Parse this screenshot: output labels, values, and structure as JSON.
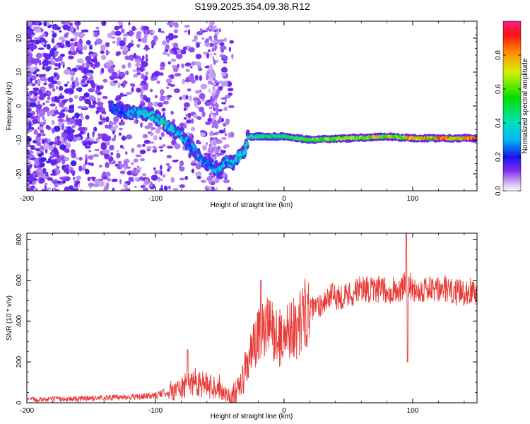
{
  "title": "S199.2025.354.09.38.R12",
  "colors": {
    "snr_line": "#e83a36",
    "axis": "#000000",
    "frame": "#000000"
  },
  "chart_data": [
    {
      "type": "heatmap",
      "name": "spectrogram",
      "xlabel": "Height of straight line (km)",
      "ylabel": "Frequency (Hz)",
      "xlim": [
        -200,
        150
      ],
      "ylim": [
        -25,
        25
      ],
      "xticks": [
        -200,
        -100,
        0,
        100
      ],
      "yticks": [
        -20,
        -10,
        0,
        10,
        20
      ],
      "colorbar": {
        "label": "Normalized spectral amplitude",
        "range": [
          0,
          1
        ],
        "ticks": [
          "0.0",
          "0.2",
          "0.4",
          "0.6",
          "0.8"
        ],
        "tick_values": [
          0.0,
          0.2,
          0.4,
          0.6,
          0.8
        ]
      },
      "ridge": [
        {
          "x": -130,
          "y": -1,
          "amp": 0.25
        },
        {
          "x": -120,
          "y": -2,
          "amp": 0.35
        },
        {
          "x": -110,
          "y": -2,
          "amp": 0.4
        },
        {
          "x": -100,
          "y": -3,
          "amp": 0.45
        },
        {
          "x": -90,
          "y": -6,
          "amp": 0.45
        },
        {
          "x": -80,
          "y": -9,
          "amp": 0.35
        },
        {
          "x": -70,
          "y": -13,
          "amp": 0.35
        },
        {
          "x": -60,
          "y": -17,
          "amp": 0.3
        },
        {
          "x": -50,
          "y": -19,
          "amp": 0.4
        },
        {
          "x": -45,
          "y": -16,
          "amp": 0.35
        },
        {
          "x": -40,
          "y": -17,
          "amp": 0.4
        },
        {
          "x": -35,
          "y": -15,
          "amp": 0.4
        },
        {
          "x": -30,
          "y": -13,
          "amp": 0.4
        },
        {
          "x": -28,
          "y": -9,
          "amp": 0.5
        },
        {
          "x": -10,
          "y": -9,
          "amp": 0.55
        },
        {
          "x": 0,
          "y": -9,
          "amp": 0.55
        },
        {
          "x": 20,
          "y": -10,
          "amp": 0.65
        },
        {
          "x": 50,
          "y": -9.5,
          "amp": 0.75
        },
        {
          "x": 80,
          "y": -9,
          "amp": 0.8
        },
        {
          "x": 100,
          "y": -9.5,
          "amp": 0.85
        },
        {
          "x": 150,
          "y": -9.5,
          "amp": 0.95
        }
      ]
    },
    {
      "type": "line",
      "name": "snr",
      "xlabel": "Height of straight line (km)",
      "ylabel": "SNR (10 * v/v)",
      "xlim": [
        -200,
        150
      ],
      "ylim": [
        0,
        830
      ],
      "xticks": [
        -200,
        -100,
        0,
        100
      ],
      "yticks": [
        0,
        200,
        400,
        600,
        800
      ],
      "series": [
        {
          "name": "SNR",
          "x": [
            -200,
            -175,
            -150,
            -125,
            -110,
            -100,
            -90,
            -80,
            -70,
            -60,
            -50,
            -45,
            -40,
            -35,
            -30,
            -25,
            -20,
            -15,
            -10,
            -5,
            0,
            5,
            10,
            15,
            20,
            25,
            30,
            35,
            40,
            45,
            50,
            55,
            60,
            65,
            70,
            75,
            80,
            85,
            90,
            95,
            100,
            105,
            110,
            115,
            120,
            125,
            130,
            135,
            140,
            145,
            150
          ],
          "values": [
            15,
            18,
            22,
            28,
            30,
            35,
            55,
            70,
            110,
            85,
            80,
            40,
            25,
            60,
            160,
            250,
            320,
            360,
            370,
            320,
            310,
            390,
            350,
            440,
            450,
            470,
            490,
            520,
            520,
            520,
            530,
            540,
            560,
            560,
            540,
            560,
            540,
            560,
            540,
            590,
            560,
            550,
            560,
            550,
            550,
            560,
            540,
            540,
            540,
            550,
            540
          ],
          "peaks": [
            {
              "x": -75,
              "value": 260
            },
            {
              "x": -18,
              "value": 600
            },
            {
              "x": 95,
              "value": 830
            },
            {
              "x": 96,
              "value": 200
            }
          ]
        }
      ]
    }
  ]
}
